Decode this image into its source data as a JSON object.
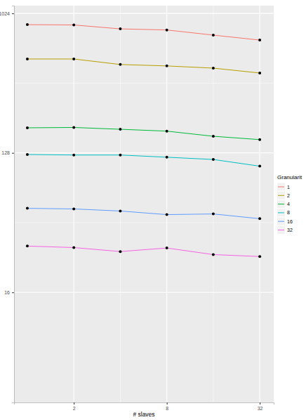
{
  "chart_data": {
    "type": "line",
    "x_label": "# slaves",
    "x": [
      1,
      2,
      4,
      8,
      16,
      32
    ],
    "xlim": [
      0.82,
      39.4
    ],
    "xticks": [
      2,
      8,
      32
    ],
    "ylim": [
      3.1,
      1150
    ],
    "yticks": [
      16,
      128,
      1024
    ],
    "log": true,
    "grid": true,
    "marker": "circle",
    "legend": "right",
    "legend_title": "Granularit",
    "series": [
      {
        "name": "1",
        "color": "#F8766D",
        "values": [
          866,
          862,
          813,
          800,
          741,
          688
        ]
      },
      {
        "name": "2",
        "color": "#B79F00",
        "values": [
          519,
          519,
          478,
          468,
          453,
          421
        ]
      },
      {
        "name": "4",
        "color": "#00BA38",
        "values": [
          186,
          187,
          182,
          177,
          164,
          156
        ]
      },
      {
        "name": "8",
        "color": "#00BFC4",
        "values": [
          125,
          124,
          124,
          120,
          116,
          105
        ]
      },
      {
        "name": "16",
        "color": "#619CFF",
        "values": [
          56,
          55.5,
          53.8,
          51,
          51.5,
          48
        ]
      },
      {
        "name": "32",
        "color": "#F564E3",
        "values": [
          31.9,
          31.2,
          29.4,
          31,
          28.1,
          27.3
        ]
      }
    ]
  }
}
